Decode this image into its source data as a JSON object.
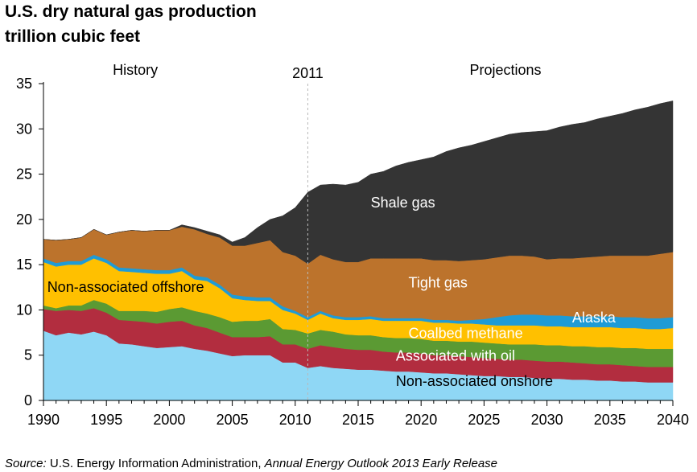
{
  "title": "U.S. dry natural gas production",
  "subtitle": "trillion cubic feet",
  "source": {
    "lead": "Source:",
    "org": "U.S. Energy Information Administration,",
    "publication": "Annual Energy Outlook 2013 Early Release"
  },
  "chart_data": {
    "type": "area",
    "stacked": true,
    "ylim": [
      0,
      35
    ],
    "yticks": [
      0,
      5,
      10,
      15,
      20,
      25,
      30,
      35
    ],
    "xlim": [
      1990,
      2040
    ],
    "xticks": [
      1990,
      1995,
      2000,
      2005,
      2010,
      2015,
      2020,
      2025,
      2030,
      2035,
      2040
    ],
    "grid": false,
    "divider": {
      "x": 2011,
      "label": "2011",
      "left_label": "History",
      "right_label": "Projections"
    },
    "x": [
      1990,
      1991,
      1992,
      1993,
      1994,
      1995,
      1996,
      1997,
      1998,
      1999,
      2000,
      2001,
      2002,
      2003,
      2004,
      2005,
      2006,
      2007,
      2008,
      2009,
      2010,
      2011,
      2012,
      2013,
      2014,
      2015,
      2016,
      2017,
      2018,
      2019,
      2020,
      2021,
      2022,
      2023,
      2024,
      2025,
      2026,
      2027,
      2028,
      2029,
      2030,
      2031,
      2032,
      2033,
      2034,
      2035,
      2036,
      2037,
      2038,
      2039,
      2040
    ],
    "series": [
      {
        "name": "Non-associated onshore",
        "color": "#8fd7f5",
        "values": [
          7.7,
          7.2,
          7.5,
          7.3,
          7.6,
          7.2,
          6.3,
          6.2,
          6.0,
          5.8,
          5.9,
          6.0,
          5.7,
          5.5,
          5.2,
          4.9,
          5.0,
          5.0,
          5.0,
          4.2,
          4.2,
          3.6,
          3.8,
          3.6,
          3.5,
          3.4,
          3.4,
          3.3,
          3.2,
          3.2,
          3.1,
          3.0,
          3.0,
          2.9,
          2.8,
          2.7,
          2.7,
          2.6,
          2.6,
          2.5,
          2.4,
          2.4,
          2.3,
          2.3,
          2.2,
          2.2,
          2.1,
          2.1,
          2.0,
          2.0,
          2.0
        ]
      },
      {
        "name": "Associated with oil",
        "color": "#b22d3f",
        "values": [
          2.4,
          2.7,
          2.5,
          2.6,
          2.6,
          2.5,
          2.6,
          2.6,
          2.7,
          2.7,
          2.8,
          2.8,
          2.6,
          2.5,
          2.3,
          2.1,
          2.0,
          2.0,
          2.1,
          2.0,
          2.0,
          2.1,
          2.3,
          2.3,
          2.2,
          2.2,
          2.2,
          2.1,
          2.1,
          2.1,
          2.1,
          2.0,
          2.0,
          2.0,
          2.0,
          2.0,
          1.9,
          1.9,
          1.9,
          1.9,
          1.9,
          1.9,
          1.9,
          1.8,
          1.8,
          1.8,
          1.8,
          1.7,
          1.7,
          1.7,
          1.7
        ]
      },
      {
        "name": "Coalbed methane",
        "color": "#5b9a33",
        "values": [
          0.4,
          0.3,
          0.5,
          0.6,
          0.9,
          1.0,
          1.0,
          1.1,
          1.2,
          1.3,
          1.4,
          1.5,
          1.6,
          1.6,
          1.7,
          1.7,
          1.8,
          1.8,
          1.9,
          1.7,
          1.6,
          1.7,
          1.7,
          1.7,
          1.6,
          1.6,
          1.6,
          1.6,
          1.6,
          1.6,
          1.6,
          1.6,
          1.6,
          1.6,
          1.7,
          1.7,
          1.7,
          1.7,
          1.7,
          1.8,
          1.8,
          1.8,
          1.8,
          1.9,
          1.9,
          1.9,
          1.9,
          2.0,
          2.0,
          2.0,
          2.0
        ]
      },
      {
        "name": "Non-associated offshore",
        "color": "#ffc000",
        "values": [
          4.8,
          4.6,
          4.5,
          4.5,
          4.6,
          4.5,
          4.4,
          4.3,
          4.2,
          4.2,
          3.9,
          4.0,
          3.5,
          3.6,
          3.2,
          2.6,
          2.3,
          2.2,
          2.0,
          2.1,
          1.8,
          1.5,
          1.8,
          1.5,
          1.6,
          1.7,
          1.8,
          1.8,
          1.9,
          1.9,
          2.0,
          2.0,
          2.0,
          2.0,
          2.0,
          2.0,
          2.0,
          2.1,
          2.1,
          2.1,
          2.1,
          2.1,
          2.1,
          2.1,
          2.2,
          2.2,
          2.2,
          2.2,
          2.2,
          2.2,
          2.3
        ]
      },
      {
        "name": "Alaska",
        "color": "#1f9bd6",
        "values": [
          0.4,
          0.4,
          0.4,
          0.4,
          0.4,
          0.4,
          0.4,
          0.4,
          0.4,
          0.4,
          0.4,
          0.4,
          0.4,
          0.4,
          0.4,
          0.4,
          0.4,
          0.4,
          0.4,
          0.4,
          0.3,
          0.3,
          0.3,
          0.3,
          0.3,
          0.3,
          0.3,
          0.3,
          0.3,
          0.3,
          0.3,
          0.3,
          0.3,
          0.3,
          0.4,
          0.6,
          0.9,
          1.1,
          1.2,
          1.2,
          1.2,
          1.2,
          1.2,
          1.2,
          1.2,
          1.2,
          1.2,
          1.2,
          1.2,
          1.2,
          1.2
        ]
      },
      {
        "name": "Tight gas",
        "color": "#bc732c",
        "values": [
          2.1,
          2.5,
          2.4,
          2.6,
          2.8,
          2.7,
          3.9,
          4.2,
          4.2,
          4.4,
          4.4,
          4.5,
          5.1,
          4.8,
          5.2,
          5.4,
          5.6,
          6.0,
          6.3,
          6.0,
          6.1,
          5.9,
          6.2,
          6.2,
          6.1,
          6.1,
          6.4,
          6.6,
          6.6,
          6.6,
          6.6,
          6.6,
          6.6,
          6.6,
          6.6,
          6.6,
          6.6,
          6.6,
          6.5,
          6.4,
          6.2,
          6.3,
          6.4,
          6.5,
          6.6,
          6.7,
          6.8,
          6.8,
          6.9,
          7.1,
          7.2
        ]
      },
      {
        "name": "Shale gas",
        "color": "#343434",
        "values": [
          0.0,
          0.0,
          0.0,
          0.0,
          0.0,
          0.0,
          0.0,
          0.0,
          0.0,
          0.0,
          0.0,
          0.2,
          0.2,
          0.3,
          0.3,
          0.4,
          0.9,
          1.7,
          2.3,
          4.0,
          5.3,
          7.9,
          7.7,
          8.3,
          8.5,
          8.8,
          9.3,
          9.6,
          10.2,
          10.6,
          10.9,
          11.4,
          12.0,
          12.5,
          12.7,
          13.0,
          13.2,
          13.4,
          13.6,
          13.8,
          14.2,
          14.5,
          14.8,
          14.9,
          15.2,
          15.4,
          15.7,
          16.1,
          16.4,
          16.6,
          16.7
        ]
      }
    ],
    "annotations": [
      {
        "text": "Shale gas",
        "x": 2016,
        "y": 21.3,
        "color": "#ffffff"
      },
      {
        "text": "Tight gas",
        "x": 2019,
        "y": 12.5,
        "color": "#ffffff"
      },
      {
        "text": "Non-associated offshore",
        "x": 1990.3,
        "y": 12.0,
        "color": "#000000",
        "anchor": "start"
      },
      {
        "text": "Alaska",
        "x": 2032,
        "y": 8.6,
        "color": "#ffffff"
      },
      {
        "text": "Coalbed methane",
        "x": 2019,
        "y": 6.9,
        "color": "#ffffff"
      },
      {
        "text": "Associated with oil",
        "x": 2018,
        "y": 4.4,
        "color": "#ffffff"
      },
      {
        "text": "Non-associated onshore",
        "x": 2018,
        "y": 1.6,
        "color": "#000000"
      }
    ]
  }
}
